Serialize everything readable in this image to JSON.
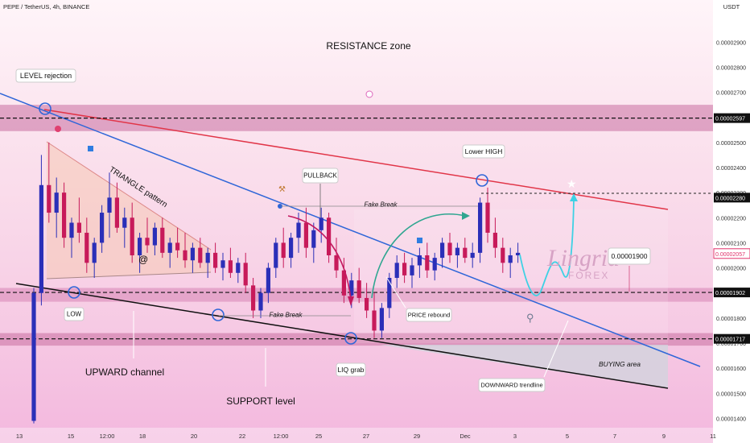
{
  "header": {
    "symbol_line": "PEPE / TetherUS, 4h, BINANCE",
    "currency": "USDT"
  },
  "chart_data": {
    "type": "candlestick",
    "ylim": [
      1.35e-05,
      3.01e-05
    ],
    "y_ticks": [
      "0.00001400",
      "0.00001500",
      "0.00001600",
      "0.00001700",
      "0.00001800",
      "0.00001900",
      "0.00002000",
      "0.00002100",
      "0.00002200",
      "0.00002300",
      "0.00002400",
      "0.00002500",
      "0.00002600",
      "0.00002700",
      "0.00002800",
      "0.00002900"
    ],
    "y_tick_values": [
      1.4e-05,
      1.5e-05,
      1.6e-05,
      1.7e-05,
      1.8e-05,
      1.9e-05,
      2e-05,
      2.1e-05,
      2.2e-05,
      2.3e-05,
      2.4e-05,
      2.5e-05,
      2.6e-05,
      2.7e-05,
      2.8e-05,
      2.9e-05
    ],
    "x_ticks": [
      "13",
      "15",
      "12:00",
      "18",
      "20",
      "22",
      "12:00",
      "25",
      "27",
      "29",
      "Dec",
      "3",
      "5",
      "7",
      "9",
      "11"
    ],
    "price_labels": [
      {
        "text": "0.00002597",
        "value": 2.597e-05,
        "style": "dark"
      },
      {
        "text": "0.00002280",
        "value": 2.28e-05,
        "style": "dark"
      },
      {
        "text": "0.00002057",
        "value": 2.057e-05,
        "style": "pink"
      },
      {
        "text": "0.00001902",
        "value": 1.902e-05,
        "style": "dark"
      },
      {
        "text": "0.00001717",
        "value": 1.717e-05,
        "style": "dark"
      }
    ],
    "zones": [
      {
        "name": "resistance",
        "from": 2.545e-05,
        "to": 2.65e-05,
        "color": "#c86da0"
      },
      {
        "name": "mid",
        "from": 1.865e-05,
        "to": 1.92e-05,
        "color": "#d783b5"
      },
      {
        "name": "support",
        "from": 1.69e-05,
        "to": 1.74e-05,
        "color": "#c86da0"
      }
    ],
    "candles_ohlc": [
      [
        1.39,
        1.92,
        1.38,
        1.9
      ],
      [
        1.9,
        2.45,
        1.85,
        2.33
      ],
      [
        2.33,
        2.5,
        2.18,
        2.22
      ],
      [
        2.22,
        2.36,
        2.12,
        2.3
      ],
      [
        2.3,
        2.34,
        2.08,
        2.12
      ],
      [
        2.12,
        2.2,
        2.04,
        2.18
      ],
      [
        2.18,
        2.28,
        2.1,
        2.14
      ],
      [
        2.14,
        2.2,
        1.98,
        2.02
      ],
      [
        2.02,
        2.12,
        1.96,
        2.1
      ],
      [
        2.1,
        2.25,
        2.06,
        2.22
      ],
      [
        2.22,
        2.38,
        2.12,
        2.28
      ],
      [
        2.28,
        2.34,
        2.14,
        2.16
      ],
      [
        2.16,
        2.24,
        2.08,
        2.2
      ],
      [
        2.2,
        2.26,
        2.02,
        2.05
      ],
      [
        2.05,
        2.14,
        1.98,
        2.12
      ],
      [
        2.12,
        2.2,
        2.06,
        2.09
      ],
      [
        2.09,
        2.18,
        2.05,
        2.16
      ],
      [
        2.16,
        2.2,
        2.04,
        2.06
      ],
      [
        2.06,
        2.12,
        2.0,
        2.1
      ],
      [
        2.1,
        2.16,
        2.04,
        2.07
      ],
      [
        2.07,
        2.14,
        2.0,
        2.03
      ],
      [
        2.03,
        2.1,
        1.98,
        2.08
      ],
      [
        2.08,
        2.12,
        2.0,
        2.02
      ],
      [
        2.02,
        2.08,
        1.96,
        2.06
      ],
      [
        2.06,
        2.1,
        1.98,
        2.0
      ],
      [
        2.0,
        2.06,
        1.95,
        2.03
      ],
      [
        2.03,
        2.08,
        1.96,
        1.98
      ],
      [
        1.98,
        2.04,
        1.94,
        2.02
      ],
      [
        2.02,
        2.06,
        1.9,
        1.93
      ],
      [
        1.93,
        1.96,
        1.8,
        1.83
      ],
      [
        1.83,
        1.92,
        1.8,
        1.9
      ],
      [
        1.9,
        2.02,
        1.86,
        2.0
      ],
      [
        2.0,
        2.12,
        1.96,
        2.1
      ],
      [
        2.1,
        2.16,
        2.0,
        2.04
      ],
      [
        2.04,
        2.14,
        2.0,
        2.12
      ],
      [
        2.12,
        2.22,
        2.06,
        2.18
      ],
      [
        2.18,
        2.24,
        2.04,
        2.08
      ],
      [
        2.08,
        2.18,
        2.02,
        2.15
      ],
      [
        2.15,
        2.24,
        2.1,
        2.2
      ],
      [
        2.2,
        2.22,
        2.02,
        2.05
      ],
      [
        2.05,
        2.12,
        1.96,
        1.99
      ],
      [
        1.99,
        2.04,
        1.86,
        1.89
      ],
      [
        1.89,
        1.98,
        1.84,
        1.95
      ],
      [
        1.95,
        2.0,
        1.86,
        1.88
      ],
      [
        1.88,
        1.94,
        1.8,
        1.83
      ],
      [
        1.83,
        1.9,
        1.72,
        1.75
      ],
      [
        1.75,
        1.86,
        1.72,
        1.84
      ],
      [
        1.84,
        1.98,
        1.8,
        1.96
      ],
      [
        1.96,
        2.05,
        1.92,
        2.02
      ],
      [
        2.02,
        2.06,
        1.94,
        1.97
      ],
      [
        1.97,
        2.04,
        1.92,
        2.01
      ],
      [
        2.01,
        2.08,
        1.96,
        2.05
      ],
      [
        2.05,
        2.1,
        1.96,
        1.99
      ],
      [
        1.99,
        2.06,
        1.95,
        2.04
      ],
      [
        2.04,
        2.12,
        2.0,
        2.1
      ],
      [
        2.1,
        2.14,
        2.02,
        2.05
      ],
      [
        2.05,
        2.1,
        2.0,
        2.08
      ],
      [
        2.08,
        2.12,
        2.02,
        2.04
      ],
      [
        2.04,
        2.1,
        2.0,
        2.06
      ],
      [
        2.06,
        2.28,
        2.02,
        2.26
      ],
      [
        2.26,
        2.32,
        2.1,
        2.14
      ],
      [
        2.14,
        2.2,
        2.04,
        2.08
      ],
      [
        2.08,
        2.12,
        1.98,
        2.02
      ],
      [
        2.02,
        2.08,
        1.96,
        2.05
      ],
      [
        2.05,
        2.1,
        2.02,
        2.06
      ]
    ],
    "annotations": [
      "RESISTANCE zone",
      "LEVEL rejection",
      "TRIANGLE pattern",
      "PULLBACK",
      "Fake Break",
      "Lower HIGH",
      "0.00001900",
      "LOW",
      "Fake Break",
      "PRICE rebound",
      "UPWARD channel",
      "LIQ grab",
      "SUPPORT level",
      "DOWNWARD trendline",
      "BUYING area"
    ],
    "watermark": [
      "Lingrid",
      "FOREX"
    ]
  }
}
